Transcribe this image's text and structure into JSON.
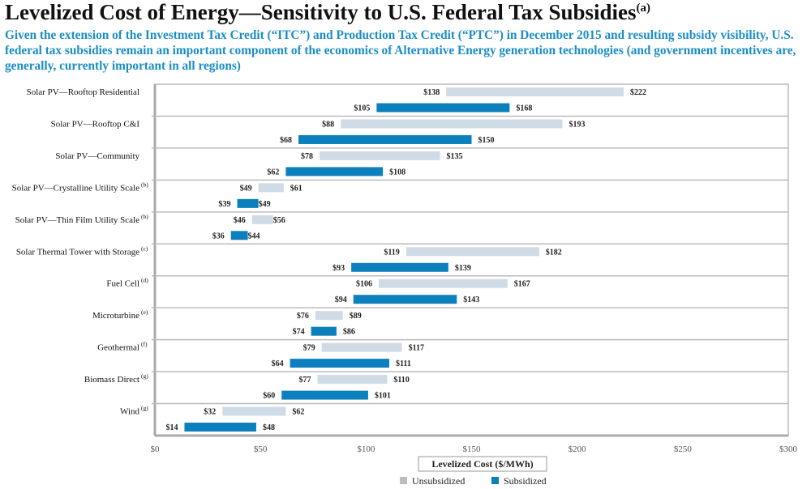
{
  "title": "Levelized Cost of Energy—Sensitivity to U.S. Federal Tax Subsidies",
  "title_note": "(a)",
  "subtitle": "Given the extension of the Investment Tax Credit (“ITC”) and Production Tax Credit (“PTC”) in December 2015 and resulting subsidy visibility, U.S. federal tax subsidies remain an important component of the economics of Alternative Energy generation technologies (and government incentives are, generally, currently important in all regions)",
  "chart_data": {
    "type": "bar",
    "orientation": "horizontal-range",
    "xlabel": "Levelized Cost ($/MWh)",
    "xlim": [
      0,
      300
    ],
    "xticks": [
      0,
      50,
      100,
      150,
      200,
      250,
      300
    ],
    "xtick_labels": [
      "$0",
      "$50",
      "$100",
      "$150",
      "$200",
      "$250",
      "$300"
    ],
    "value_prefix": "$",
    "legend_position": "bottom",
    "colors": {
      "Unsubsidized": "#cfdbe6",
      "Subsidized": "#0c80bd"
    },
    "categories": [
      {
        "label": "Solar PV—Rooftop Residential",
        "note": ""
      },
      {
        "label": "Solar PV—Rooftop C&I",
        "note": ""
      },
      {
        "label": "Solar PV—Community",
        "note": ""
      },
      {
        "label": "Solar PV—Crystalline Utility Scale",
        "note": "(b)"
      },
      {
        "label": "Solar PV—Thin Film Utility Scale",
        "note": "(b)"
      },
      {
        "label": "Solar Thermal Tower with Storage",
        "note": "(c)"
      },
      {
        "label": "Fuel Cell",
        "note": "(d)"
      },
      {
        "label": "Microturbine",
        "note": "(e)"
      },
      {
        "label": "Geothermal",
        "note": "(f)"
      },
      {
        "label": "Biomass Direct",
        "note": "(g)"
      },
      {
        "label": "Wind",
        "note": "(g)"
      }
    ],
    "series": [
      {
        "name": "Unsubsidized",
        "ranges": [
          [
            138,
            222
          ],
          [
            88,
            193
          ],
          [
            78,
            135
          ],
          [
            49,
            61
          ],
          [
            46,
            56
          ],
          [
            119,
            182
          ],
          [
            106,
            167
          ],
          [
            76,
            89
          ],
          [
            79,
            117
          ],
          [
            77,
            110
          ],
          [
            32,
            62
          ]
        ]
      },
      {
        "name": "Subsidized",
        "ranges": [
          [
            105,
            168
          ],
          [
            68,
            150
          ],
          [
            62,
            108
          ],
          [
            39,
            49
          ],
          [
            36,
            44
          ],
          [
            93,
            139
          ],
          [
            94,
            143
          ],
          [
            74,
            86
          ],
          [
            64,
            111
          ],
          [
            60,
            101
          ],
          [
            14,
            48
          ]
        ]
      }
    ]
  }
}
